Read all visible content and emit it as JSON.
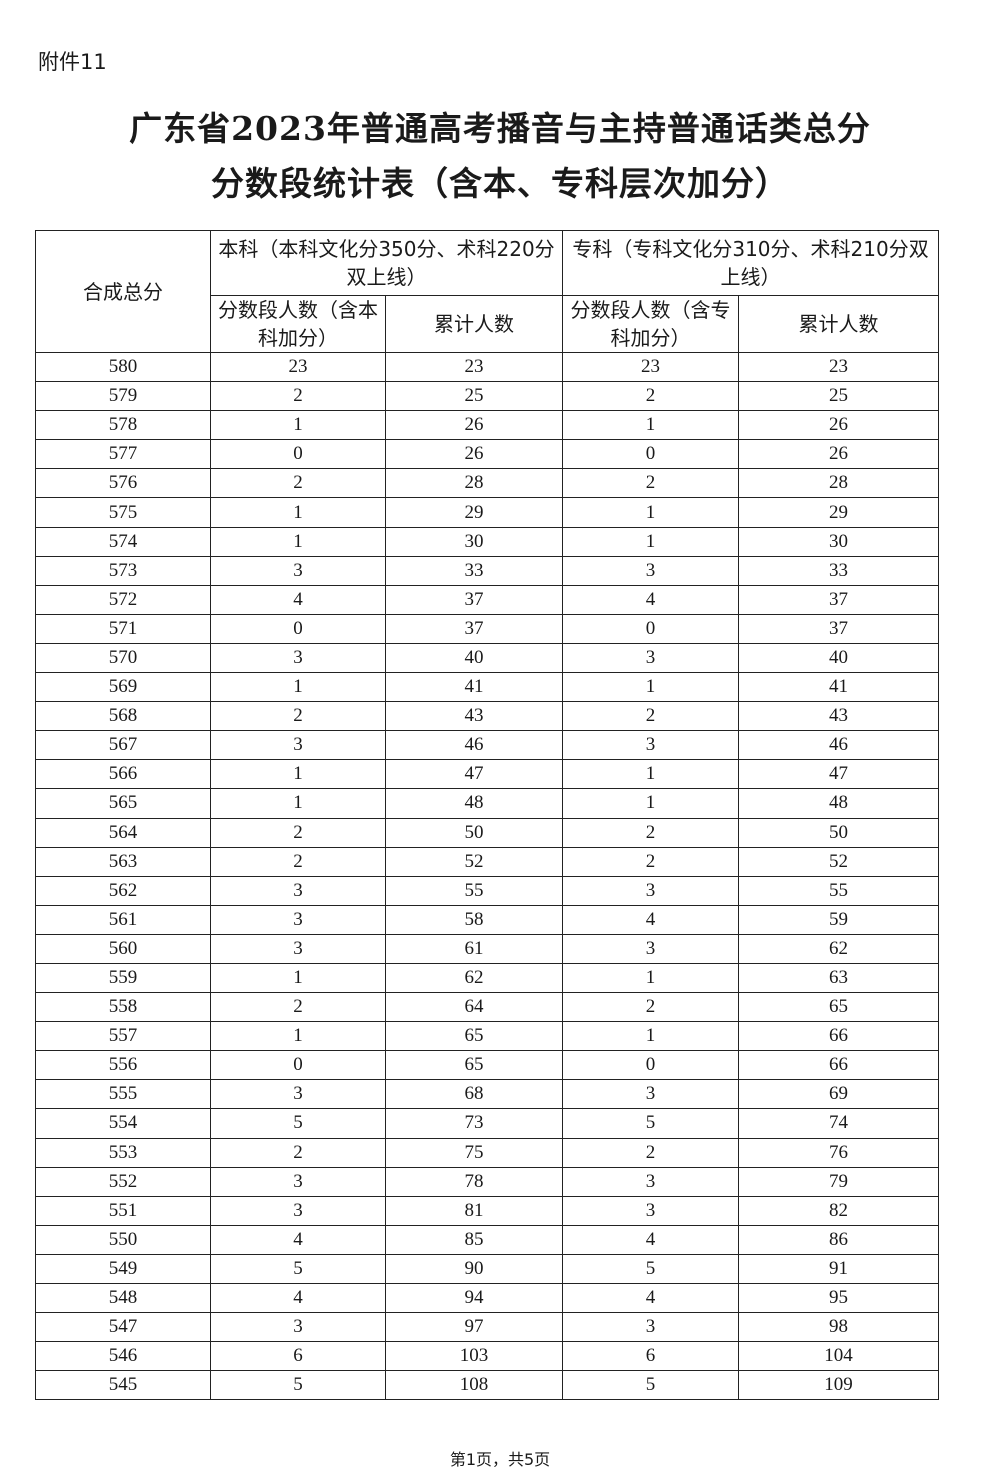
{
  "attachment_label": "附件11",
  "title_line1": "广东省2023年普通高考播音与主持普通话类总分",
  "title_line2": "分数段统计表（含本、专科层次加分）",
  "table": {
    "header_score": "合成总分",
    "group_benke": "本科（本科文化分350分、术科220分双上线）",
    "group_zhuanke": "专科（专科文化分310分、术科210分双上线）",
    "benke_count": "分数段人数（含本科加分）",
    "benke_cumulative": "累计人数",
    "zhuanke_count": "分数段人数（含专科加分）",
    "zhuanke_cumulative": "累计人数",
    "rows": [
      [
        "580",
        "23",
        "23",
        "23",
        "23"
      ],
      [
        "579",
        "2",
        "25",
        "2",
        "25"
      ],
      [
        "578",
        "1",
        "26",
        "1",
        "26"
      ],
      [
        "577",
        "0",
        "26",
        "0",
        "26"
      ],
      [
        "576",
        "2",
        "28",
        "2",
        "28"
      ],
      [
        "575",
        "1",
        "29",
        "1",
        "29"
      ],
      [
        "574",
        "1",
        "30",
        "1",
        "30"
      ],
      [
        "573",
        "3",
        "33",
        "3",
        "33"
      ],
      [
        "572",
        "4",
        "37",
        "4",
        "37"
      ],
      [
        "571",
        "0",
        "37",
        "0",
        "37"
      ],
      [
        "570",
        "3",
        "40",
        "3",
        "40"
      ],
      [
        "569",
        "1",
        "41",
        "1",
        "41"
      ],
      [
        "568",
        "2",
        "43",
        "2",
        "43"
      ],
      [
        "567",
        "3",
        "46",
        "3",
        "46"
      ],
      [
        "566",
        "1",
        "47",
        "1",
        "47"
      ],
      [
        "565",
        "1",
        "48",
        "1",
        "48"
      ],
      [
        "564",
        "2",
        "50",
        "2",
        "50"
      ],
      [
        "563",
        "2",
        "52",
        "2",
        "52"
      ],
      [
        "562",
        "3",
        "55",
        "3",
        "55"
      ],
      [
        "561",
        "3",
        "58",
        "4",
        "59"
      ],
      [
        "560",
        "3",
        "61",
        "3",
        "62"
      ],
      [
        "559",
        "1",
        "62",
        "1",
        "63"
      ],
      [
        "558",
        "2",
        "64",
        "2",
        "65"
      ],
      [
        "557",
        "1",
        "65",
        "1",
        "66"
      ],
      [
        "556",
        "0",
        "65",
        "0",
        "66"
      ],
      [
        "555",
        "3",
        "68",
        "3",
        "69"
      ],
      [
        "554",
        "5",
        "73",
        "5",
        "74"
      ],
      [
        "553",
        "2",
        "75",
        "2",
        "76"
      ],
      [
        "552",
        "3",
        "78",
        "3",
        "79"
      ],
      [
        "551",
        "3",
        "81",
        "3",
        "82"
      ],
      [
        "550",
        "4",
        "85",
        "4",
        "86"
      ],
      [
        "549",
        "5",
        "90",
        "5",
        "91"
      ],
      [
        "548",
        "4",
        "94",
        "4",
        "95"
      ],
      [
        "547",
        "3",
        "97",
        "3",
        "98"
      ],
      [
        "546",
        "6",
        "103",
        "6",
        "104"
      ],
      [
        "545",
        "5",
        "108",
        "5",
        "109"
      ]
    ]
  },
  "footer": "第1页，共5页"
}
